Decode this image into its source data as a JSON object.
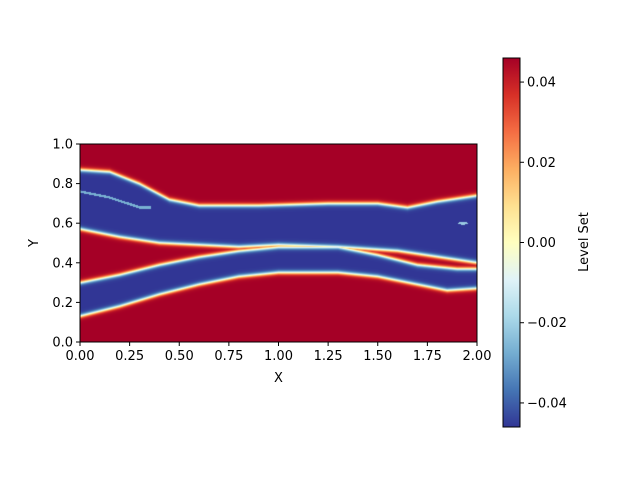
{
  "chart_data": {
    "type": "heatmap",
    "title": "",
    "xlabel": "X",
    "ylabel": "Y",
    "xlim": [
      0.0,
      2.0
    ],
    "ylim": [
      0.0,
      1.0
    ],
    "x_ticks": [
      "0.00",
      "0.25",
      "0.50",
      "0.75",
      "1.00",
      "1.25",
      "1.50",
      "1.75",
      "2.00"
    ],
    "y_ticks": [
      "0.0",
      "0.2",
      "0.4",
      "0.6",
      "0.8",
      "1.0"
    ],
    "colormap": "RdYlBu_r",
    "colorbar": {
      "label": "Level Set",
      "range": [
        -0.046,
        0.046
      ],
      "ticks": [
        "0.04",
        "0.02",
        "0.00",
        "−0.02",
        "−0.04"
      ],
      "tick_values": [
        0.04,
        0.02,
        0.0,
        -0.02,
        -0.04
      ]
    },
    "field": {
      "description_of_contour": "negative (blue) region bounded by interfaces",
      "upper_interface_top": [
        [
          0.0,
          0.87
        ],
        [
          0.15,
          0.86
        ],
        [
          0.3,
          0.8
        ],
        [
          0.45,
          0.72
        ],
        [
          0.6,
          0.69
        ],
        [
          0.9,
          0.69
        ],
        [
          1.25,
          0.7
        ],
        [
          1.5,
          0.7
        ],
        [
          1.65,
          0.68
        ],
        [
          1.8,
          0.71
        ],
        [
          2.0,
          0.74
        ]
      ],
      "upper_interface_bottom": [
        [
          0.0,
          0.57
        ],
        [
          0.2,
          0.53
        ],
        [
          0.4,
          0.5
        ],
        [
          0.6,
          0.49
        ],
        [
          0.8,
          0.48
        ],
        [
          1.0,
          0.49
        ],
        [
          1.3,
          0.48
        ],
        [
          1.6,
          0.46
        ],
        [
          1.8,
          0.43
        ],
        [
          2.0,
          0.4
        ]
      ],
      "lower_band_top": [
        [
          0.0,
          0.3
        ],
        [
          0.2,
          0.34
        ],
        [
          0.4,
          0.39
        ],
        [
          0.6,
          0.43
        ],
        [
          0.8,
          0.46
        ],
        [
          1.0,
          0.48
        ],
        [
          1.3,
          0.48
        ],
        [
          1.5,
          0.44
        ],
        [
          1.7,
          0.39
        ],
        [
          1.9,
          0.37
        ],
        [
          2.0,
          0.37
        ]
      ],
      "lower_band_bottom": [
        [
          0.0,
          0.13
        ],
        [
          0.2,
          0.18
        ],
        [
          0.4,
          0.24
        ],
        [
          0.6,
          0.29
        ],
        [
          0.8,
          0.33
        ],
        [
          1.0,
          0.35
        ],
        [
          1.3,
          0.35
        ],
        [
          1.5,
          0.33
        ],
        [
          1.7,
          0.29
        ],
        [
          1.85,
          0.26
        ],
        [
          2.0,
          0.27
        ]
      ],
      "thin_stripe": [
        [
          0.0,
          0.76
        ],
        [
          0.15,
          0.73
        ],
        [
          0.3,
          0.68
        ]
      ],
      "right_island": [
        1.93,
        0.6
      ]
    }
  }
}
